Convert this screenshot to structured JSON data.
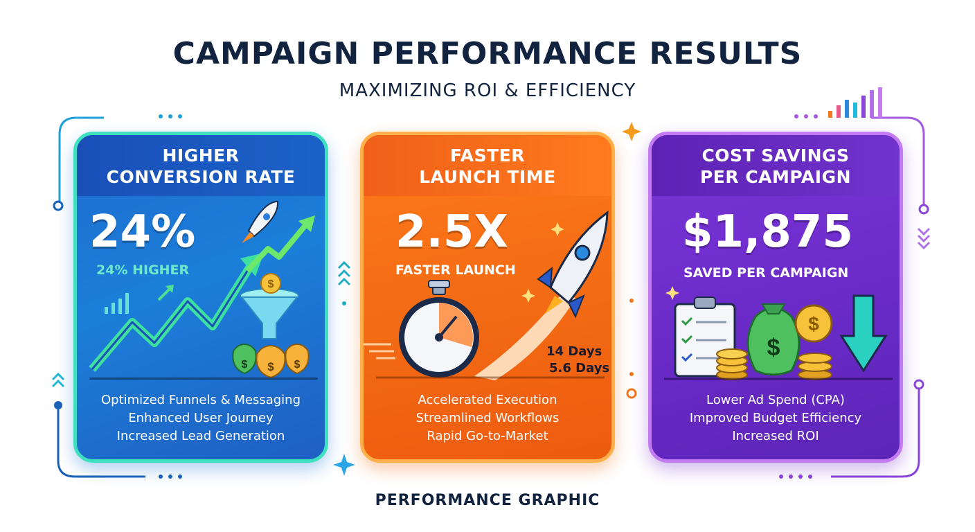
{
  "header": {
    "title": "CAMPAIGN PERFORMANCE RESULTS",
    "subtitle": "MAXIMIZING ROI & EFFICIENCY"
  },
  "cards": [
    {
      "title_line1": "HIGHER",
      "title_line2": "CONVERSION RATE",
      "value": "24%",
      "caption": "24% HIGHER",
      "bullets": [
        "Optimized Funnels & Messaging",
        "Enhanced User Journey",
        "Increased Lead Generation"
      ],
      "accent": "#1f6ad0",
      "icons": [
        "rocket-icon",
        "growth-arrow-icon",
        "funnel-icon",
        "money-bag-icon"
      ]
    },
    {
      "title_line1": "FASTER",
      "title_line2": "LAUNCH TIME",
      "value": "2.5X",
      "caption": "FASTER LAUNCH",
      "days_before": "14 Days",
      "days_after": "5.6 Days",
      "bullets": [
        "Accelerated Execution",
        "Streamlined Workflows",
        "Rapid Go-to-Market"
      ],
      "accent": "#f26a14",
      "icons": [
        "stopwatch-icon",
        "rocket-icon"
      ]
    },
    {
      "title_line1": "COST SAVINGS",
      "title_line2": "PER CAMPAIGN",
      "value": "$1,875",
      "caption": "SAVED PER CAMPAIGN",
      "bullets": [
        "Lower Ad Spend (CPA)",
        "Improved Budget Efficiency",
        "Increased ROI"
      ],
      "accent": "#6a2bc8",
      "icons": [
        "clipboard-checklist-icon",
        "money-bag-icon",
        "coin-stack-icon",
        "down-arrow-icon"
      ]
    }
  ],
  "footer": {
    "label": "PERFORMANCE GRAPHIC"
  }
}
